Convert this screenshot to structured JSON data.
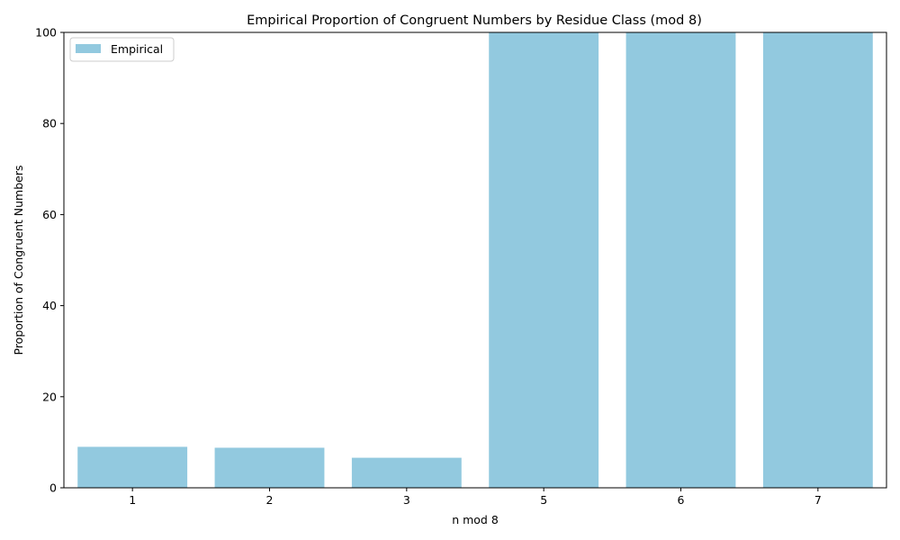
{
  "chart_data": {
    "type": "bar",
    "title": "Empirical Proportion of Congruent Numbers by Residue Class (mod 8)",
    "xlabel": "n mod 8",
    "ylabel": "Proportion of Congruent Numbers",
    "categories": [
      "1",
      "2",
      "3",
      "5",
      "6",
      "7"
    ],
    "series": [
      {
        "name": "Empirical",
        "values": [
          9.0,
          8.8,
          6.6,
          100,
          100,
          100
        ],
        "color": "#92c9df"
      }
    ],
    "ylim": [
      0,
      100
    ],
    "yticks": [
      0,
      20,
      40,
      60,
      80,
      100
    ],
    "grid": false,
    "legend_position": "top-left"
  }
}
